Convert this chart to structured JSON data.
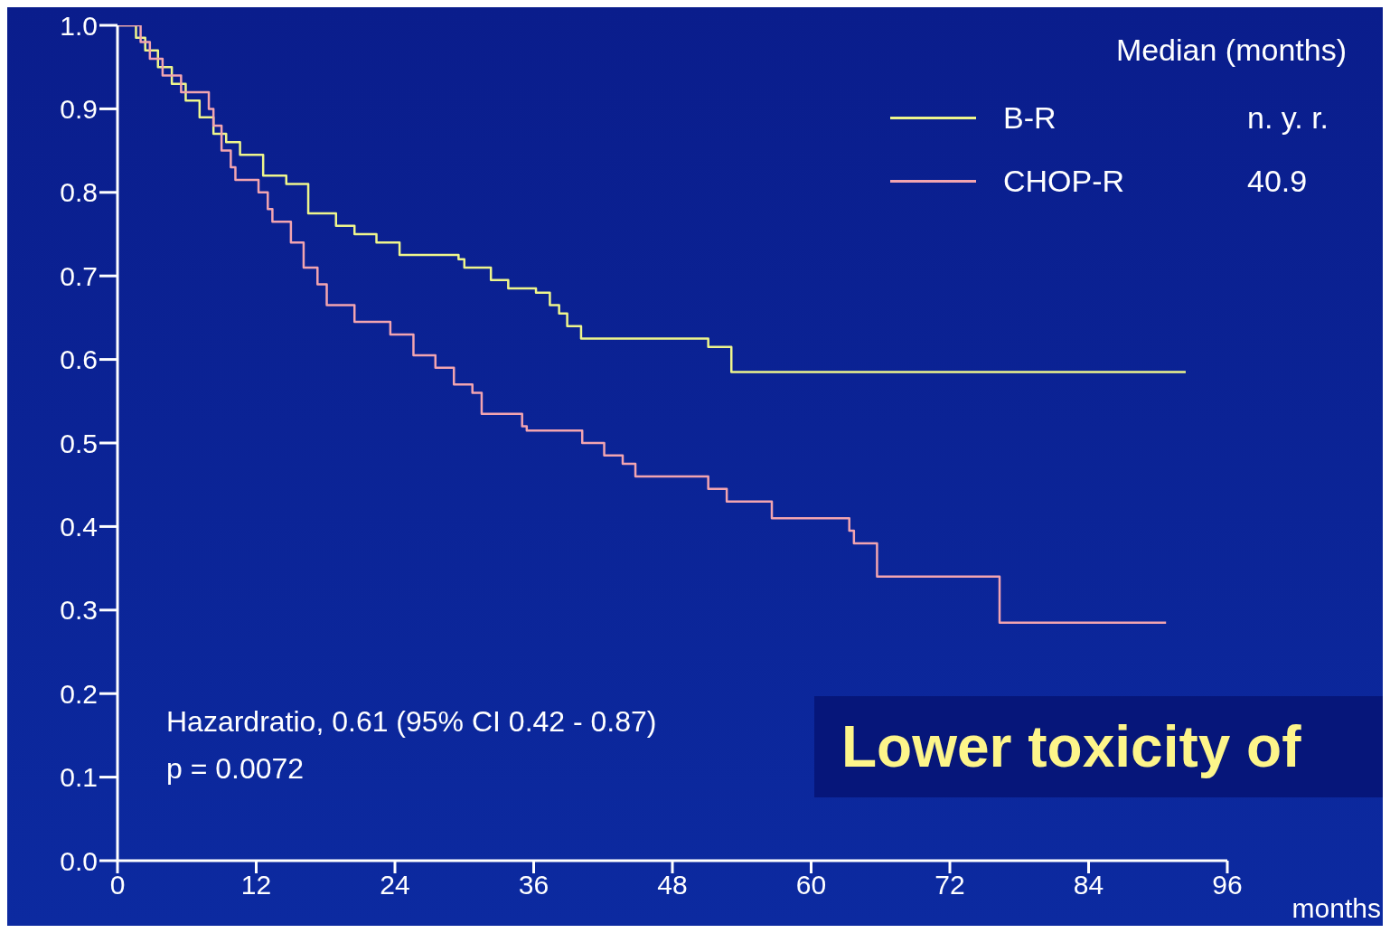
{
  "chart_data": {
    "type": "step",
    "xlabel": "months",
    "legend_title": "Median (months)",
    "legend": "top right",
    "marker": "none",
    "line_style": "solid",
    "xlim": [
      0,
      96
    ],
    "xticks": [
      0,
      12,
      24,
      36,
      48,
      60,
      72,
      84,
      96
    ],
    "ylim": [
      0,
      1
    ],
    "yticks": [
      {
        "value": 0,
        "label": "0.0"
      },
      0.1,
      0.2,
      0.3,
      0.4,
      0.5,
      0.6,
      0.7,
      0.8,
      0.9,
      {
        "value": 1,
        "label": "1.0"
      }
    ],
    "series": [
      {
        "name": "B-R",
        "color": "#eef58c",
        "x": [
          0,
          1.6,
          2.4,
          3.5,
          4.7,
          5.9,
          7.1,
          8.3,
          9.4,
          10.6,
          12.6,
          14.6,
          16.5,
          18.9,
          20.5,
          22.4,
          24.4,
          29.5,
          30.0,
          32.3,
          33.8,
          36.2,
          37.4,
          38.2,
          38.9,
          40.1,
          51.1,
          53.1,
          92.4
        ],
        "values": [
          1.0,
          0.985,
          0.97,
          0.95,
          0.93,
          0.91,
          0.89,
          0.87,
          0.86,
          0.845,
          0.82,
          0.81,
          0.775,
          0.76,
          0.75,
          0.74,
          0.725,
          0.72,
          0.71,
          0.695,
          0.685,
          0.68,
          0.665,
          0.655,
          0.64,
          0.625,
          0.615,
          0.585,
          0.585
        ]
      },
      {
        "name": "CHOP-R",
        "color": "#f2a4b0",
        "x": [
          0,
          2.0,
          2.8,
          3.9,
          5.5,
          7.9,
          8.3,
          9.0,
          9.8,
          10.2,
          12.2,
          13.0,
          13.4,
          15.0,
          16.1,
          17.3,
          18.1,
          20.5,
          23.6,
          25.6,
          27.5,
          29.1,
          30.7,
          31.5,
          35.0,
          35.4,
          40.2,
          42.1,
          43.7,
          44.8,
          51.1,
          52.7,
          56.6,
          63.3,
          63.7,
          65.7,
          76.3,
          90.7
        ],
        "values": [
          1.0,
          0.98,
          0.96,
          0.94,
          0.92,
          0.9,
          0.88,
          0.85,
          0.83,
          0.815,
          0.8,
          0.78,
          0.765,
          0.74,
          0.71,
          0.69,
          0.665,
          0.645,
          0.63,
          0.605,
          0.59,
          0.57,
          0.56,
          0.535,
          0.52,
          0.515,
          0.5,
          0.485,
          0.475,
          0.46,
          0.445,
          0.43,
          0.41,
          0.395,
          0.38,
          0.34,
          0.285,
          0.285
        ]
      }
    ],
    "annotations": [
      "n. y. r.",
      "40.9",
      "Hazardratio, 0.61 (95% CI 0.42 - 0.87)",
      "p = 0.0072",
      "Lower toxicity of"
    ]
  }
}
